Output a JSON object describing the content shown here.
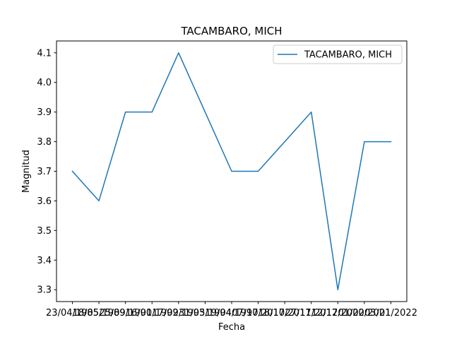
{
  "chart_data": {
    "type": "line",
    "title": "TACAMBARO, MICH",
    "xlabel": "Fecha",
    "ylabel": "Magnitud",
    "categories": [
      "23/04/1985",
      "18/05/1989",
      "25/09/1990",
      "16/01/1992",
      "17/09/1993",
      "31/05/1994",
      "19/04/1997",
      "07/10/2017",
      "18/10/2017",
      "27/11/2017",
      "12/12/2020",
      "01/02/2021",
      "03/01/2022"
    ],
    "series": [
      {
        "name": "TACAMBARO, MICH",
        "values": [
          3.7,
          3.6,
          3.9,
          3.9,
          4.1,
          3.9,
          3.7,
          3.7,
          3.8,
          3.9,
          3.3,
          3.8,
          3.8
        ],
        "color": "#1f77b4"
      }
    ],
    "ylim": [
      3.26,
      4.14
    ],
    "yticks": [
      3.3,
      3.4,
      3.5,
      3.6,
      3.7,
      3.8,
      3.9,
      4.0,
      4.1
    ],
    "yticklabels": [
      "3.3",
      "3.4",
      "3.5",
      "3.6",
      "3.7",
      "3.8",
      "3.9",
      "4.0",
      "4.1"
    ],
    "grid": false,
    "legend_position": "upper right"
  }
}
